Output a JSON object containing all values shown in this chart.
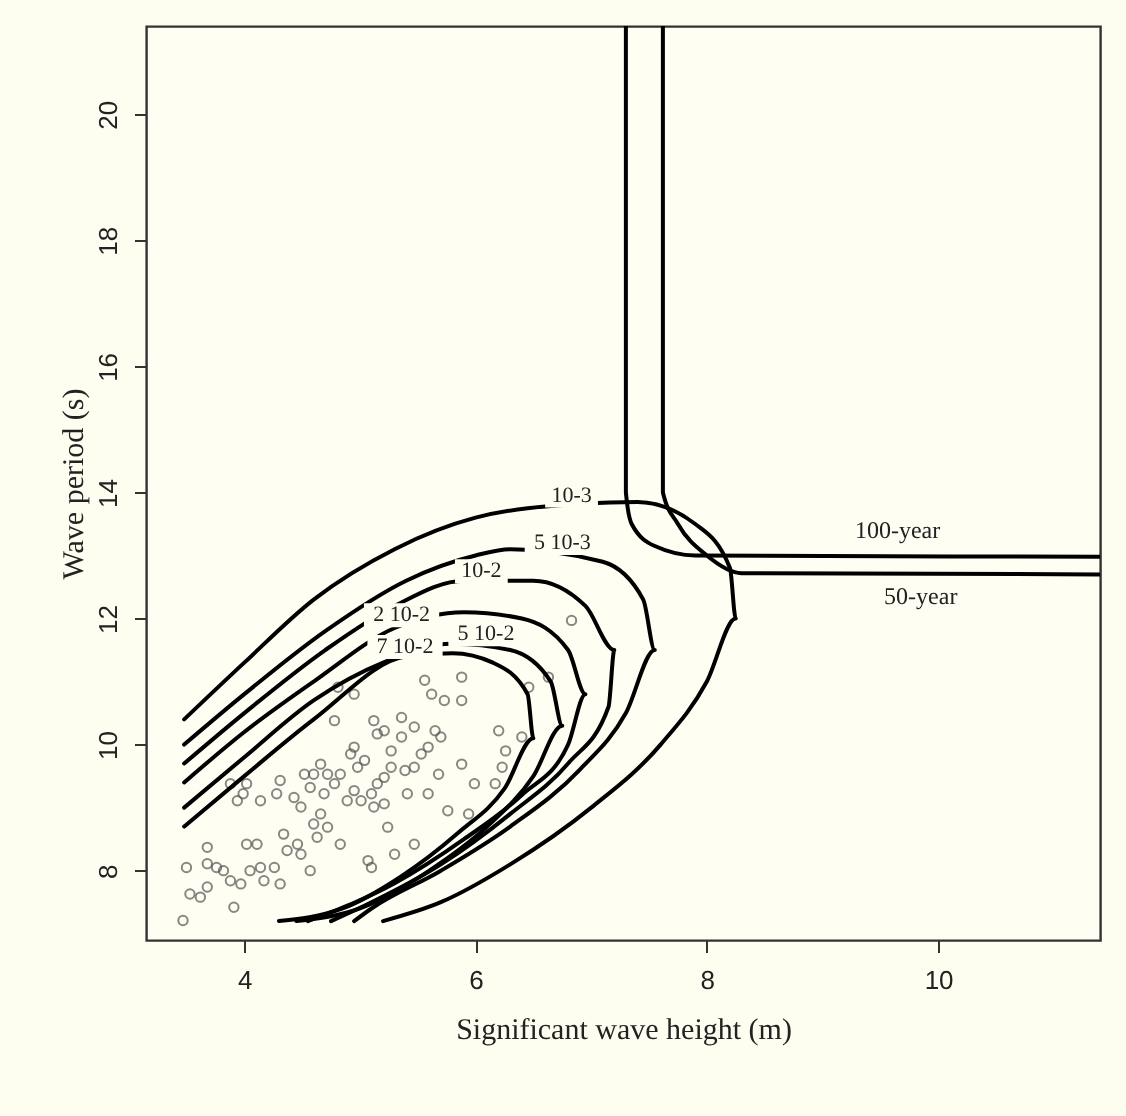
{
  "chart_data": {
    "type": "scatter",
    "xlabel": "Significant wave height (m)",
    "ylabel": "Wave period (s)",
    "xlim": [
      3.15,
      11.4
    ],
    "ylim": [
      6.9,
      21.4
    ],
    "xticks": [
      4,
      6,
      8,
      10
    ],
    "yticks": [
      8,
      10,
      12,
      14,
      16,
      18,
      20
    ],
    "marker": "circle",
    "series": [
      {
        "type": "scatter",
        "color": "#555555",
        "x": [
          3.47,
          3.53,
          3.62,
          3.5,
          3.68,
          3.76,
          3.88,
          3.91,
          3.97,
          4.05,
          4.14,
          4.17,
          4.31,
          4.26,
          4.37,
          4.49,
          4.57,
          3.68,
          4.02,
          4.11,
          4.34,
          4.46,
          4.6,
          4.66,
          4.72,
          4.63,
          4.83,
          5.07,
          3.99,
          4.02,
          4.14,
          4.28,
          4.43,
          4.49,
          4.57,
          4.6,
          4.66,
          4.72,
          4.83,
          4.78,
          4.92,
          4.98,
          4.95,
          5.01,
          5.1,
          5.12,
          5.21,
          5.24,
          5.15,
          5.21,
          5.27,
          5.27,
          5.39,
          5.47,
          5.53,
          5.59,
          5.59,
          5.65,
          5.47,
          5.36,
          5.12,
          5.15,
          4.95,
          4.78,
          4.95,
          4.81,
          5.56,
          5.62,
          5.73,
          5.88,
          5.88,
          5.88,
          6.2,
          6.26,
          6.17,
          5.94,
          6.46,
          6.63,
          6.83,
          5.76,
          5.47,
          5.3,
          5.1,
          3.68,
          3.82,
          3.88,
          3.94,
          4.31,
          4.52,
          4.69,
          4.89,
          5.04,
          5.41,
          5.68,
          5.99,
          6.23,
          6.4,
          5.7,
          5.36,
          5.21
        ],
        "values": [
          7.21,
          7.63,
          7.58,
          8.05,
          8.11,
          8.05,
          7.84,
          7.42,
          7.79,
          8.0,
          8.05,
          7.84,
          7.79,
          8.05,
          8.32,
          8.26,
          8.0,
          8.37,
          8.42,
          8.42,
          8.58,
          8.42,
          8.74,
          8.9,
          8.69,
          8.53,
          8.42,
          8.16,
          9.22,
          9.38,
          9.11,
          9.22,
          9.16,
          9.01,
          9.32,
          9.53,
          9.69,
          9.53,
          9.53,
          9.38,
          9.85,
          9.64,
          9.27,
          9.11,
          9.22,
          9.01,
          9.06,
          8.69,
          9.38,
          9.48,
          9.64,
          9.9,
          9.59,
          9.64,
          9.85,
          9.96,
          9.22,
          10.22,
          10.28,
          10.12,
          10.38,
          10.17,
          9.96,
          10.38,
          10.8,
          10.91,
          11.02,
          10.8,
          10.7,
          10.7,
          11.07,
          9.69,
          10.22,
          9.9,
          9.38,
          8.9,
          10.91,
          11.07,
          11.97,
          8.95,
          8.42,
          8.26,
          8.05,
          7.74,
          8.0,
          9.38,
          9.11,
          9.43,
          9.53,
          9.22,
          9.11,
          9.75,
          9.22,
          9.53,
          9.38,
          9.64,
          10.12,
          10.12,
          10.43,
          10.22
        ]
      },
      {
        "type": "line",
        "color": "#000000",
        "marker": "none",
        "x": [
          3.48,
          4.0,
          4.6,
          5.3,
          6.0,
          6.45,
          7.4,
          7.9,
          8.2,
          8.25,
          8.0,
          7.6,
          7.0,
          6.3,
          5.7,
          5.2
        ],
        "values": [
          10.4,
          11.3,
          12.3,
          13.1,
          13.6,
          13.75,
          13.85,
          13.5,
          12.8,
          12.0,
          11.0,
          10.0,
          9.0,
          8.1,
          7.5,
          7.2
        ]
      },
      {
        "type": "line",
        "color": "#000000",
        "marker": "none",
        "x": [
          3.48,
          4.0,
          4.7,
          5.4,
          6.0,
          6.3,
          7.1,
          7.45,
          7.55,
          7.3,
          6.9,
          6.3,
          5.7,
          5.1,
          4.95
        ],
        "values": [
          10.0,
          10.8,
          11.8,
          12.6,
          13.0,
          13.1,
          12.9,
          12.3,
          11.5,
          10.5,
          9.6,
          8.7,
          8.0,
          7.4,
          7.2
        ]
      },
      {
        "type": "line",
        "color": "#000000",
        "marker": "none",
        "x": [
          3.48,
          4.0,
          4.7,
          5.3,
          5.9,
          6.5,
          6.95,
          7.2,
          7.15,
          6.8,
          6.3,
          5.7,
          5.1,
          4.75
        ],
        "values": [
          9.7,
          10.5,
          11.5,
          12.2,
          12.6,
          12.6,
          12.2,
          11.5,
          10.6,
          9.7,
          8.9,
          8.1,
          7.5,
          7.2
        ]
      },
      {
        "type": "line",
        "color": "#000000",
        "marker": "none",
        "x": [
          3.48,
          4.0,
          4.6,
          5.3,
          5.9,
          6.4,
          6.8,
          6.95,
          6.8,
          6.4,
          5.9,
          5.3,
          4.55
        ],
        "values": [
          9.4,
          10.2,
          11.0,
          11.85,
          12.1,
          12.0,
          11.5,
          10.8,
          10.0,
          9.2,
          8.5,
          7.8,
          7.2
        ]
      },
      {
        "type": "line",
        "color": "#000000",
        "marker": "none",
        "x": [
          3.48,
          4.0,
          4.6,
          5.2,
          5.8,
          6.3,
          6.65,
          6.75,
          6.5,
          6.1,
          5.6,
          5.0,
          4.45
        ],
        "values": [
          9.0,
          9.8,
          10.7,
          11.3,
          11.6,
          11.5,
          11.0,
          10.3,
          9.5,
          8.7,
          8.0,
          7.4,
          7.2
        ]
      },
      {
        "type": "line",
        "color": "#000000",
        "marker": "none",
        "x": [
          3.48,
          4.0,
          4.6,
          5.4,
          5.8,
          6.15,
          6.45,
          6.5,
          6.25,
          5.85,
          5.35,
          4.85,
          4.3
        ],
        "values": [
          8.7,
          9.5,
          10.4,
          11.4,
          11.45,
          11.3,
          10.8,
          10.1,
          9.3,
          8.6,
          7.9,
          7.4,
          7.2
        ]
      },
      {
        "type": "line",
        "name": "100-year",
        "color": "#000000",
        "marker": "none",
        "x": [
          7.3,
          7.3,
          7.35,
          7.55,
          7.9,
          11.4
        ],
        "values": [
          21.4,
          14.0,
          13.5,
          13.15,
          13.0,
          12.98
        ]
      },
      {
        "type": "line",
        "name": "50-year",
        "color": "#000000",
        "marker": "none",
        "x": [
          7.62,
          7.62,
          7.75,
          8.0,
          8.3,
          11.4
        ],
        "values": [
          21.4,
          14.0,
          13.5,
          13.0,
          12.72,
          12.7
        ]
      }
    ],
    "annotations": [
      {
        "text": "10-3",
        "x": 6.83,
        "y": 13.95
      },
      {
        "text": "5 10-3",
        "x": 6.75,
        "y": 13.2
      },
      {
        "text": "10-2",
        "x": 6.05,
        "y": 12.75
      },
      {
        "text": "2 10-2",
        "x": 5.36,
        "y": 12.05
      },
      {
        "text": "5 10-2",
        "x": 6.09,
        "y": 11.75
      },
      {
        "text": "7 10-2",
        "x": 5.39,
        "y": 11.55
      }
    ]
  }
}
